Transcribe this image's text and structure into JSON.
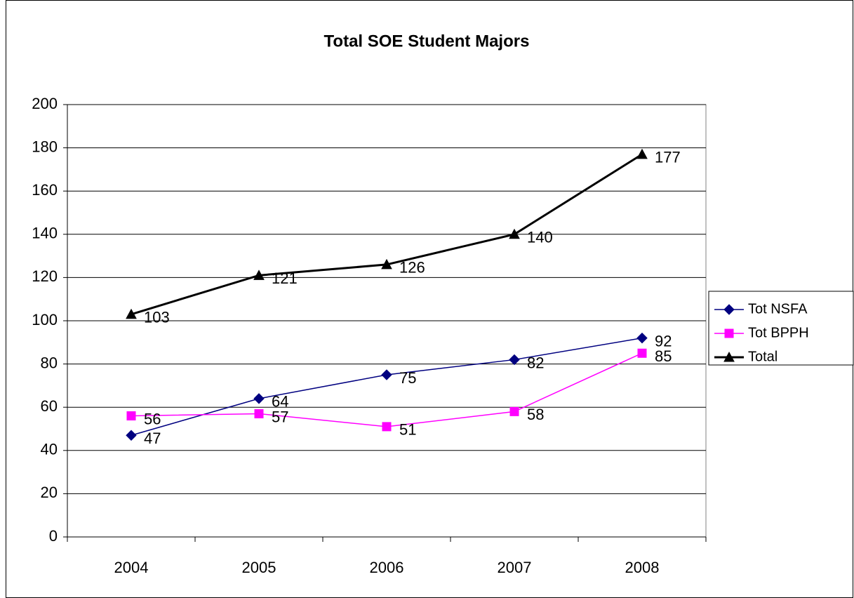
{
  "chart_data": {
    "type": "line",
    "title": "Total SOE Student Majors",
    "categories": [
      "2004",
      "2005",
      "2006",
      "2007",
      "2008"
    ],
    "series": [
      {
        "name": "Tot NSFA",
        "color": "#000080",
        "marker": "diamond",
        "values": [
          47,
          64,
          75,
          82,
          92
        ]
      },
      {
        "name": "Tot BPPH",
        "color": "#ff00ff",
        "marker": "square",
        "values": [
          56,
          57,
          51,
          58,
          85
        ]
      },
      {
        "name": "Total",
        "color": "#000000",
        "marker": "triangle",
        "values": [
          103,
          121,
          126,
          140,
          177
        ]
      }
    ],
    "ylim": [
      0,
      200
    ],
    "yticks": [
      0,
      20,
      40,
      60,
      80,
      100,
      120,
      140,
      160,
      180,
      200
    ],
    "grid": true,
    "legend": "right",
    "data_labels": true
  }
}
